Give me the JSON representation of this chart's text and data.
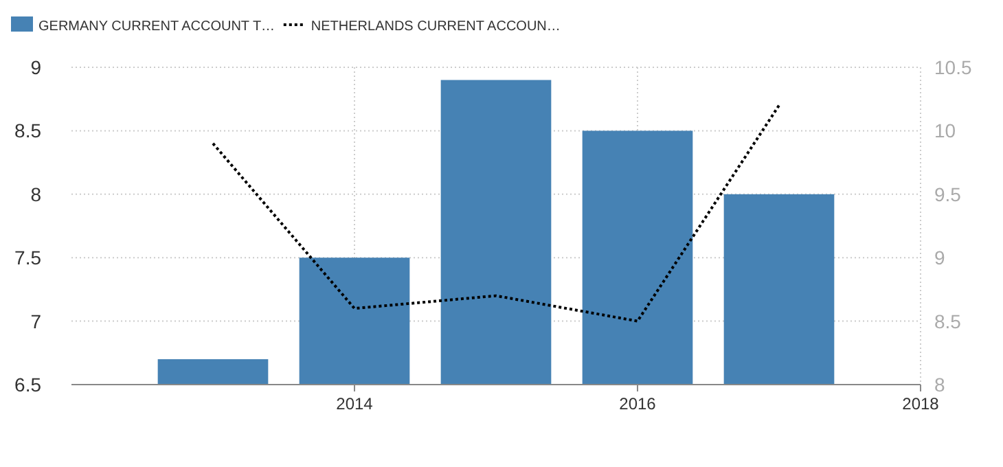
{
  "chart_data": {
    "type": "bar",
    "x": [
      2013,
      2014,
      2015,
      2016,
      2017
    ],
    "xlim": [
      2012,
      2018
    ],
    "xticks": [
      2014,
      2016,
      2018
    ],
    "ylim": [
      6.5,
      9
    ],
    "yticks": [
      6.5,
      7,
      7.5,
      8,
      8.5,
      9
    ],
    "y2lim": [
      8,
      10.5
    ],
    "y2ticks": [
      8,
      8.5,
      9,
      9.5,
      10,
      10.5
    ],
    "grid": true,
    "legend": "top left",
    "series": [
      {
        "name": "GERMANY CURRENT ACCOUNT T…",
        "color": "#4682b4",
        "values": [
          6.7,
          7.5,
          8.9,
          8.5,
          8.0
        ]
      },
      {
        "name": "NETHERLANDS CURRENT ACCOUN…",
        "color": "#000000",
        "type": "line",
        "axis": "y2",
        "line_style": "dotted",
        "values": [
          9.9,
          8.6,
          8.7,
          8.5,
          10.2
        ]
      }
    ]
  }
}
